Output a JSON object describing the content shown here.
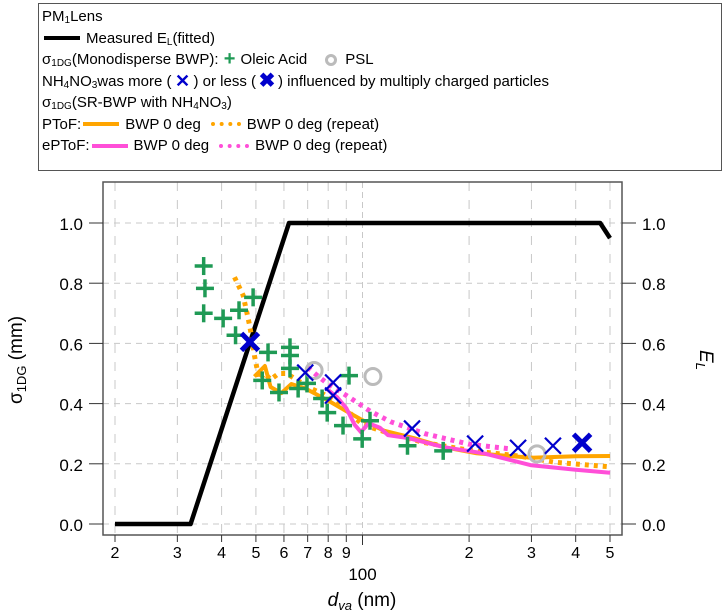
{
  "legend": {
    "title_main": "PM",
    "title_sub": "1",
    "title_rest": " Lens",
    "measured_label_main": "Measured E",
    "measured_label_sub": "L",
    "measured_label_rest": " (fitted)",
    "mono_prefix_main": "σ",
    "mono_prefix_sub": "1DG",
    "mono_prefix_rest": " (Monodisperse BWP):",
    "oleic_label": "Oleic Acid",
    "psl_label": "PSL",
    "nh4_main": "NH",
    "nh4_sub1": "4",
    "nh4_mid": "NO",
    "nh4_sub2": "3",
    "nh4_text1": " was more (",
    "nh4_text2": ") or less (",
    "nh4_text3": ") influenced by multiply charged particles",
    "sr_main": "σ",
    "sr_sub": "1DG",
    "sr_text": " (SR-BWP with NH",
    "sr_sub2": "4",
    "sr_text2": "NO",
    "sr_sub3": "3",
    "sr_text3": ")",
    "ptof_label": "PToF:",
    "eptof_label": "ePToF:",
    "bwp_label": "BWP 0 deg",
    "bwp_repeat_label": "BWP 0 deg (repeat)"
  },
  "chart_data": {
    "type": "line",
    "title": "PM1 Lens",
    "xlabel": "d_va (nm)",
    "ylabel_left": "σ1DG (mm)",
    "ylabel_right": "E_L",
    "xscale": "log",
    "xlim": [
      20,
      500
    ],
    "ylim": [
      0,
      1.0
    ],
    "y2lim": [
      0,
      1.0
    ],
    "grid": true,
    "legend_position": "top (above plot)",
    "x_ticks": [
      {
        "value": 20,
        "label": "2"
      },
      {
        "value": 30,
        "label": "3"
      },
      {
        "value": 40,
        "label": "4"
      },
      {
        "value": 50,
        "label": "5"
      },
      {
        "value": 60,
        "label": "6"
      },
      {
        "value": 70,
        "label": "7"
      },
      {
        "value": 80,
        "label": "8"
      },
      {
        "value": 90,
        "label": "9"
      },
      {
        "value": 100,
        "label": "100"
      },
      {
        "value": 200,
        "label": "2"
      },
      {
        "value": 300,
        "label": "3"
      },
      {
        "value": 400,
        "label": "4"
      },
      {
        "value": 500,
        "label": "5"
      }
    ],
    "y_ticks": [
      "0.0",
      "0.2",
      "0.4",
      "0.6",
      "0.8",
      "1.0"
    ],
    "y_tick_values": [
      0,
      0.2,
      0.4,
      0.6,
      0.8,
      1.0
    ],
    "series": [
      {
        "name": "Measured E_L (fitted)",
        "kind": "line",
        "axis": "right",
        "color": "#000000",
        "style": "solid",
        "points": [
          [
            20,
            0
          ],
          [
            32.7,
            0
          ],
          [
            62,
            1.0
          ],
          [
            469,
            1.0
          ],
          [
            500,
            0.95
          ]
        ]
      },
      {
        "name": "Oleic Acid",
        "kind": "marker",
        "marker": "plus",
        "color": "#1f9a55",
        "points": [
          [
            35.6,
            0.857
          ],
          [
            35.9,
            0.783
          ],
          [
            35.6,
            0.7
          ],
          [
            40.4,
            0.683
          ],
          [
            44.8,
            0.71
          ],
          [
            49.1,
            0.753
          ],
          [
            43.8,
            0.627
          ],
          [
            54.1,
            0.57
          ],
          [
            62.4,
            0.587
          ],
          [
            62.4,
            0.56
          ],
          [
            62.4,
            0.517
          ],
          [
            52.1,
            0.477
          ],
          [
            58.1,
            0.437
          ],
          [
            65.8,
            0.45
          ],
          [
            69.7,
            0.467
          ],
          [
            76.9,
            0.417
          ],
          [
            79.5,
            0.37
          ],
          [
            91.6,
            0.493
          ],
          [
            88.1,
            0.327
          ],
          [
            99.8,
            0.283
          ],
          [
            105,
            0.343
          ],
          [
            134,
            0.26
          ],
          [
            169,
            0.243
          ]
        ]
      },
      {
        "name": "PSL",
        "kind": "marker",
        "marker": "circle",
        "color": "#bbbbbb",
        "points": [
          [
            73,
            0.51
          ],
          [
            107,
            0.49
          ],
          [
            311,
            0.233
          ]
        ]
      },
      {
        "name": "NH4NO3 more influenced",
        "kind": "marker",
        "marker": "x",
        "color": "#0000cc",
        "points": [
          [
            68.9,
            0.503
          ],
          [
            82.6,
            0.47
          ],
          [
            82.6,
            0.427
          ],
          [
            138,
            0.317
          ],
          [
            208,
            0.267
          ],
          [
            275,
            0.253
          ],
          [
            345,
            0.26
          ]
        ]
      },
      {
        "name": "NH4NO3 less influenced",
        "kind": "marker",
        "marker": "x-bold",
        "color": "#0000cc",
        "points": [
          [
            48.1,
            0.605
          ],
          [
            417,
            0.27
          ]
        ]
      },
      {
        "name": "PToF BWP 0 deg",
        "kind": "line",
        "color": "#ffa500",
        "style": "solid",
        "points": [
          [
            49.5,
            0.49
          ],
          [
            53,
            0.525
          ],
          [
            55,
            0.455
          ],
          [
            59,
            0.435
          ],
          [
            63,
            0.465
          ],
          [
            69,
            0.45
          ],
          [
            80,
            0.41
          ],
          [
            90,
            0.375
          ],
          [
            100,
            0.345
          ],
          [
            115,
            0.31
          ],
          [
            140,
            0.285
          ],
          [
            170,
            0.255
          ],
          [
            210,
            0.235
          ],
          [
            300,
            0.22
          ],
          [
            400,
            0.225
          ],
          [
            500,
            0.226
          ]
        ]
      },
      {
        "name": "PToF BWP 0 deg (repeat)",
        "kind": "line",
        "color": "#ffa500",
        "style": "dotted",
        "points": [
          [
            43.5,
            0.82
          ],
          [
            46,
            0.76
          ],
          [
            48,
            0.66
          ],
          [
            49,
            0.6
          ],
          [
            49.5,
            0.56
          ],
          [
            50.5,
            0.51
          ],
          [
            51,
            0.48
          ],
          [
            53,
            0.5
          ],
          [
            55,
            0.48
          ],
          [
            58,
            0.5
          ],
          [
            61,
            0.5
          ],
          [
            66,
            0.475
          ],
          [
            70,
            0.455
          ],
          [
            78,
            0.43
          ],
          [
            90,
            0.38
          ],
          [
            100,
            0.33
          ],
          [
            120,
            0.3
          ],
          [
            150,
            0.27
          ],
          [
            200,
            0.245
          ],
          [
            280,
            0.225
          ],
          [
            350,
            0.205
          ],
          [
            500,
            0.19
          ]
        ]
      },
      {
        "name": "ePToF BWP 0 deg",
        "kind": "line",
        "color": "#ff4fd8",
        "style": "solid",
        "points": [
          [
            79,
            0.45
          ],
          [
            85,
            0.42
          ],
          [
            90,
            0.385
          ],
          [
            95,
            0.33
          ],
          [
            99,
            0.305
          ],
          [
            104,
            0.335
          ],
          [
            112,
            0.32
          ],
          [
            118,
            0.295
          ],
          [
            135,
            0.285
          ],
          [
            170,
            0.255
          ],
          [
            220,
            0.235
          ],
          [
            300,
            0.195
          ],
          [
            400,
            0.18
          ],
          [
            500,
            0.17
          ]
        ]
      },
      {
        "name": "ePToF BWP 0 deg (repeat)",
        "kind": "line",
        "color": "#ff4fd8",
        "style": "dotted",
        "points": [
          [
            70,
            0.52
          ],
          [
            75,
            0.49
          ],
          [
            80,
            0.465
          ],
          [
            92,
            0.42
          ],
          [
            105,
            0.375
          ],
          [
            120,
            0.34
          ],
          [
            150,
            0.3
          ],
          [
            200,
            0.265
          ],
          [
            260,
            0.25
          ]
        ]
      }
    ]
  }
}
